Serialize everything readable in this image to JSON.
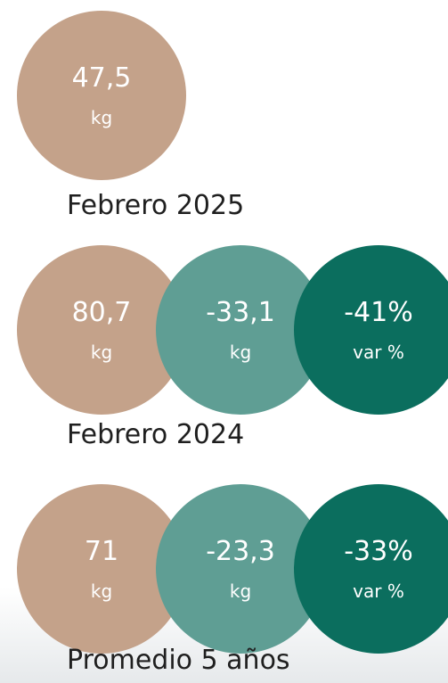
{
  "sections": [
    {
      "circles": [
        {
          "value": "47,5",
          "unit": "kg",
          "color": "#c4a28a"
        }
      ],
      "label": "Febrero 2025"
    },
    {
      "circles": [
        {
          "value": "80,7",
          "unit": "kg",
          "color": "#c4a28a"
        },
        {
          "value": "-33,1",
          "unit": "kg",
          "color": "#5f9e94"
        },
        {
          "value": "-41%",
          "unit": "var %",
          "color": "#0b6e5e"
        }
      ],
      "label": "Febrero 2024"
    },
    {
      "circles": [
        {
          "value": "71",
          "unit": "kg",
          "color": "#c4a28a"
        },
        {
          "value": "-23,3",
          "unit": "kg",
          "color": "#5f9e94"
        },
        {
          "value": "-33%",
          "unit": "var %",
          "color": "#0b6e5e"
        }
      ],
      "label": "Promedio 5 años"
    }
  ]
}
